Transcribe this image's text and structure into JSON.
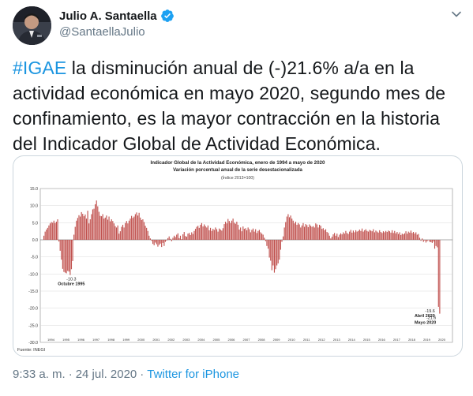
{
  "author": {
    "display_name": "Julio A. Santaella",
    "handle": "@SantaellaJulio",
    "verified": true,
    "avatar": "profile-photo"
  },
  "tweet": {
    "hashtag": "#IGAE",
    "text_rest": " la disminución anual de (-)21.6% a/a en la actividad económica en mayo 2020, segundo mes de confinamiento, es la mayor contracción en la historia del Indicador Global de Actividad Económica."
  },
  "meta": {
    "time": "9:33 a. m.",
    "separator": "·",
    "date": "24 jul. 2020",
    "source": "Twitter for iPhone"
  },
  "icons": {
    "more": "chevron-down-icon",
    "verified": "verified-badge-icon"
  },
  "colors": {
    "link": "#1b95e0",
    "bars": "#c0504d",
    "secondary_text": "#657786"
  },
  "chart_data": {
    "type": "bar",
    "title": "Indicador Global de la Actividad Económica, enero de 1994 a mayo de 2020",
    "subtitle": "Variación porcentual anual de la serie desestacionalizada",
    "note": "(Índice 2013=100)",
    "source": "Fuente: INEGI",
    "ylim": [
      -30,
      15
    ],
    "yticks": [
      "15.0",
      "10.0",
      "5.0",
      "0.0",
      "-5.0",
      "-10.0",
      "-15.0",
      "-20.0",
      "-25.0",
      "-30.0"
    ],
    "years": [
      "1994",
      "1995",
      "1996",
      "1997",
      "1998",
      "1999",
      "2000",
      "2001",
      "2002",
      "2003",
      "2004",
      "2005",
      "2006",
      "2007",
      "2008",
      "2009",
      "2010",
      "2011",
      "2012",
      "2013",
      "2014",
      "2015",
      "2016",
      "2017",
      "2018",
      "2019",
      "2020"
    ],
    "annotations": [
      {
        "value": "-10.3",
        "label": "Octubre 1995"
      },
      {
        "value": "-19.6",
        "label": "Abril 2020"
      },
      {
        "value": "-21.6",
        "label": "Mayo 2020"
      }
    ],
    "series": [
      {
        "values": [
          1.2,
          2.4,
          3.0,
          3.5,
          4.2,
          4.8,
          5.2,
          5.0,
          5.6,
          4.9,
          5.3,
          6.0,
          -0.5,
          -3.2,
          -5.8,
          -8.5,
          -9.4,
          -9.6,
          -9.8,
          -9.1,
          -9.3,
          -10.3,
          -8.6,
          -6.2,
          1.5,
          3.8,
          5.6,
          6.4,
          7.2,
          6.8,
          8.1,
          7.6,
          6.9,
          7.4,
          6.2,
          8.5,
          4.8,
          6.0,
          7.5,
          8.9,
          9.1,
          10.4,
          11.5,
          9.8,
          8.2,
          7.0,
          6.9,
          7.5,
          6.2,
          6.5,
          7.1,
          5.9,
          6.8,
          5.4,
          6.0,
          5.5,
          4.8,
          4.0,
          3.6,
          4.2,
          1.8,
          2.5,
          3.8,
          4.4,
          3.6,
          4.9,
          5.5,
          4.8,
          5.6,
          6.2,
          7.0,
          6.4,
          6.8,
          7.5,
          8.0,
          7.1,
          7.9,
          6.5,
          5.8,
          6.0,
          5.2,
          4.1,
          3.5,
          2.6,
          1.2,
          0.4,
          -0.3,
          -1.2,
          -1.6,
          -0.8,
          -1.3,
          -2.0,
          -1.5,
          -1.1,
          -2.1,
          -0.9,
          -1.8,
          -0.6,
          -0.2,
          0.5,
          1.0,
          0.3,
          -0.4,
          0.6,
          1.2,
          0.8,
          1.5,
          1.9,
          0.5,
          1.2,
          0.2,
          1.6,
          2.3,
          1.1,
          0.9,
          1.8,
          2.0,
          1.4,
          2.2,
          1.7,
          2.6,
          3.2,
          3.8,
          4.1,
          3.5,
          4.4,
          4.9,
          3.9,
          4.5,
          4.0,
          3.6,
          4.2,
          2.8,
          3.5,
          2.6,
          3.2,
          2.9,
          3.6,
          3.1,
          2.4,
          3.3,
          3.0,
          2.7,
          3.4,
          4.6,
          5.3,
          4.8,
          6.1,
          5.5,
          4.9,
          5.6,
          6.2,
          5.0,
          4.7,
          5.3,
          4.4,
          3.0,
          3.6,
          2.5,
          3.9,
          3.2,
          3.4,
          2.8,
          3.6,
          3.1,
          2.2,
          2.9,
          3.3,
          2.4,
          3.1,
          2.0,
          2.6,
          2.9,
          2.2,
          1.8,
          1.5,
          0.6,
          -0.4,
          -1.8,
          -2.6,
          -5.2,
          -6.1,
          -8.9,
          -7.5,
          -9.6,
          -8.6,
          -7.5,
          -6.9,
          -5.8,
          -2.9,
          -0.6,
          1.0,
          3.6,
          5.2,
          6.8,
          7.5,
          6.6,
          7.1,
          6.2,
          5.6,
          4.8,
          5.3,
          4.4,
          4.9,
          4.5,
          3.6,
          4.2,
          4.9,
          3.8,
          4.6,
          4.3,
          3.7,
          4.5,
          4.1,
          3.8,
          4.0,
          3.6,
          4.8,
          4.5,
          3.6,
          4.4,
          4.1,
          3.2,
          3.4,
          2.8,
          3.1,
          2.3,
          2.0,
          1.2,
          0.4,
          0.9,
          1.6,
          2.0,
          1.2,
          1.8,
          0.8,
          1.5,
          1.9,
          1.6,
          2.2,
          1.8,
          2.6,
          2.0,
          1.7,
          2.4,
          2.9,
          2.1,
          2.7,
          2.2,
          2.8,
          2.4,
          2.6,
          3.0,
          2.6,
          3.3,
          2.4,
          2.8,
          3.1,
          2.6,
          2.4,
          2.9,
          2.7,
          2.5,
          3.1,
          2.2,
          2.7,
          2.4,
          2.1,
          2.8,
          2.3,
          2.0,
          2.5,
          2.2,
          2.6,
          2.3,
          2.7,
          2.5,
          2.1,
          2.8,
          2.0,
          2.6,
          1.9,
          2.3,
          1.7,
          2.2,
          1.4,
          1.8,
          1.6,
          1.9,
          2.5,
          1.8,
          2.4,
          2.1,
          2.7,
          2.0,
          2.3,
          1.8,
          2.2,
          1.5,
          1.7,
          0.6,
          -0.3,
          0.4,
          -0.6,
          -0.2,
          -0.8,
          -0.4,
          -0.1,
          -0.6,
          -0.7,
          -0.9,
          -0.5,
          -2.6,
          -1.8,
          -2.2,
          -19.6,
          -21.6
        ]
      }
    ]
  }
}
